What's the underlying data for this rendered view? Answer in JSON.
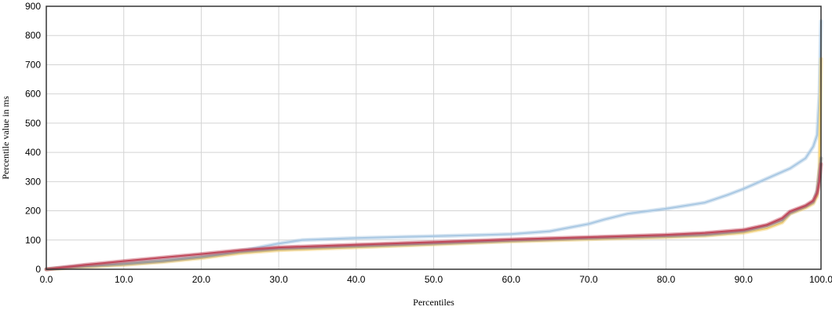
{
  "chart_data": {
    "type": "line",
    "title": "",
    "xlabel": "Percentiles",
    "ylabel": "Percentile value in ms",
    "xlim": [
      0,
      100
    ],
    "ylim": [
      0,
      900
    ],
    "x_ticks": [
      "0.0",
      "10.0",
      "20.0",
      "30.0",
      "40.0",
      "50.0",
      "60.0",
      "70.0",
      "80.0",
      "90.0",
      "100.0"
    ],
    "y_ticks": [
      "0",
      "100",
      "200",
      "300",
      "400",
      "500",
      "600",
      "700",
      "800",
      "900"
    ],
    "x_tick_values": [
      0,
      10,
      20,
      30,
      40,
      50,
      60,
      70,
      80,
      90,
      100
    ],
    "y_tick_values": [
      0,
      100,
      200,
      300,
      400,
      500,
      600,
      700,
      800,
      900
    ],
    "grid": true,
    "series": [
      {
        "color": "#a9c8e3",
        "points": [
          [
            0,
            0
          ],
          [
            5,
            12
          ],
          [
            10,
            20
          ],
          [
            15,
            30
          ],
          [
            20,
            42
          ],
          [
            25,
            62
          ],
          [
            30,
            88
          ],
          [
            33,
            100
          ],
          [
            40,
            107
          ],
          [
            50,
            113
          ],
          [
            60,
            120
          ],
          [
            65,
            130
          ],
          [
            68,
            145
          ],
          [
            70,
            155
          ],
          [
            72,
            170
          ],
          [
            75,
            190
          ],
          [
            80,
            207
          ],
          [
            85,
            228
          ],
          [
            88,
            255
          ],
          [
            90,
            275
          ],
          [
            93,
            310
          ],
          [
            96,
            345
          ],
          [
            98,
            380
          ],
          [
            99,
            420
          ],
          [
            99.5,
            460
          ],
          [
            99.8,
            600
          ],
          [
            100,
            850
          ]
        ]
      },
      {
        "color": "#f2cc6b",
        "points": [
          [
            0,
            0
          ],
          [
            5,
            8
          ],
          [
            10,
            15
          ],
          [
            15,
            25
          ],
          [
            20,
            38
          ],
          [
            25,
            55
          ],
          [
            30,
            65
          ],
          [
            40,
            75
          ],
          [
            50,
            85
          ],
          [
            60,
            95
          ],
          [
            70,
            103
          ],
          [
            80,
            110
          ],
          [
            85,
            115
          ],
          [
            90,
            125
          ],
          [
            93,
            140
          ],
          [
            95,
            160
          ],
          [
            96,
            190
          ],
          [
            98,
            210
          ],
          [
            99,
            225
          ],
          [
            99.5,
            250
          ],
          [
            99.8,
            350
          ],
          [
            100,
            720
          ]
        ]
      },
      {
        "color": "#9a9a9a",
        "points": [
          [
            0,
            0
          ],
          [
            5,
            10
          ],
          [
            10,
            18
          ],
          [
            15,
            28
          ],
          [
            20,
            42
          ],
          [
            25,
            60
          ],
          [
            30,
            70
          ],
          [
            40,
            79
          ],
          [
            50,
            88
          ],
          [
            60,
            98
          ],
          [
            70,
            106
          ],
          [
            80,
            113
          ],
          [
            85,
            118
          ],
          [
            90,
            130
          ],
          [
            93,
            148
          ],
          [
            95,
            168
          ],
          [
            96,
            192
          ],
          [
            98,
            215
          ],
          [
            99,
            230
          ],
          [
            99.5,
            270
          ],
          [
            100,
            380
          ]
        ]
      },
      {
        "color": "#c0485a",
        "points": [
          [
            0,
            0
          ],
          [
            5,
            15
          ],
          [
            10,
            28
          ],
          [
            15,
            40
          ],
          [
            20,
            52
          ],
          [
            25,
            65
          ],
          [
            30,
            75
          ],
          [
            40,
            84
          ],
          [
            50,
            93
          ],
          [
            60,
            102
          ],
          [
            70,
            110
          ],
          [
            80,
            118
          ],
          [
            85,
            124
          ],
          [
            90,
            135
          ],
          [
            93,
            152
          ],
          [
            95,
            175
          ],
          [
            96,
            198
          ],
          [
            98,
            218
          ],
          [
            99,
            235
          ],
          [
            99.5,
            260
          ],
          [
            99.8,
            300
          ],
          [
            100,
            360
          ]
        ]
      }
    ]
  }
}
